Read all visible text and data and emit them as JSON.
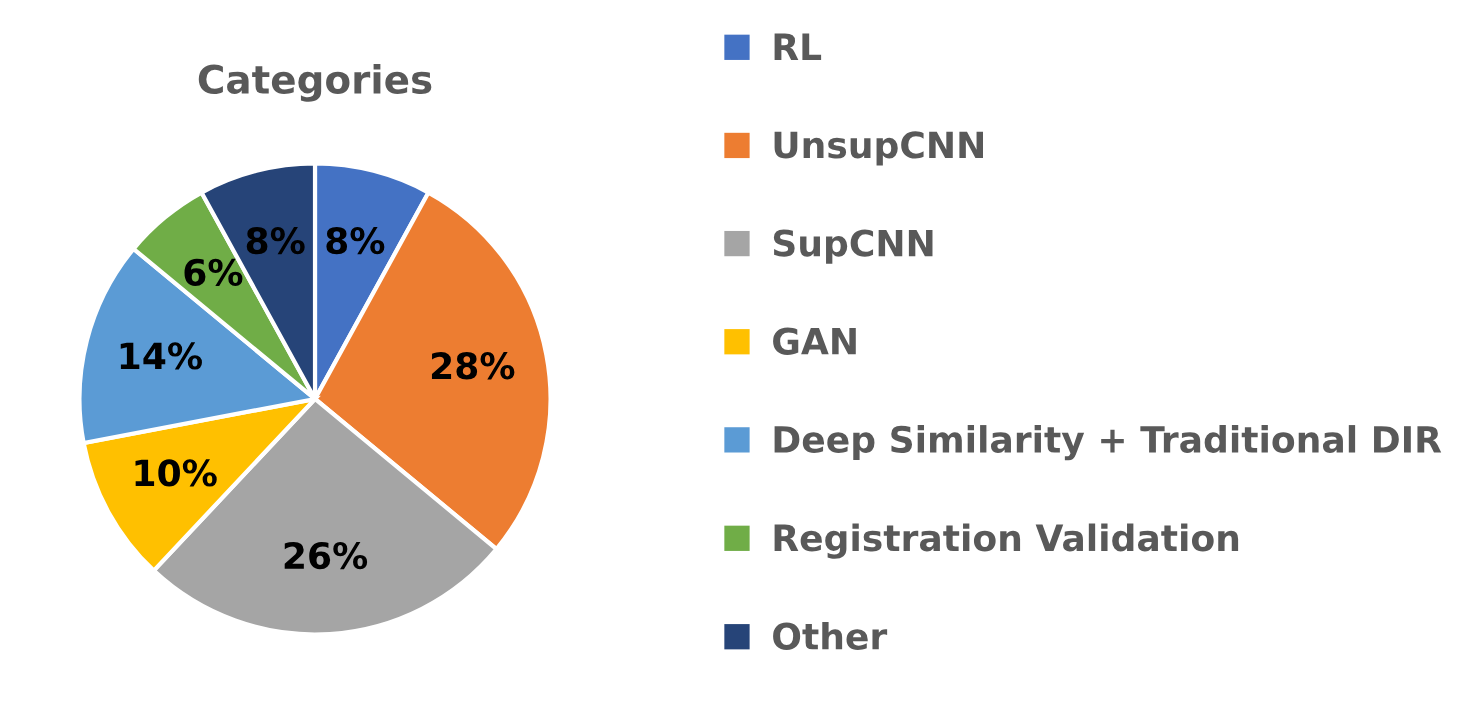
{
  "chart_data": {
    "type": "pie",
    "title": "Categories",
    "categories": [
      "RL",
      "UnsupCNN",
      "SupCNN",
      "GAN",
      "Deep Similarity + Traditional DIR",
      "Registration Validation",
      "Other"
    ],
    "values": [
      8,
      28,
      26,
      10,
      14,
      6,
      8
    ],
    "value_labels": [
      "8%",
      "28%",
      "26%",
      "10%",
      "14%",
      "6%",
      "8%"
    ],
    "colors": [
      "#4472c4",
      "#ed7d31",
      "#a5a5a5",
      "#ffc000",
      "#5b9bd5",
      "#70ad47",
      "#264478"
    ],
    "legend": "right"
  }
}
